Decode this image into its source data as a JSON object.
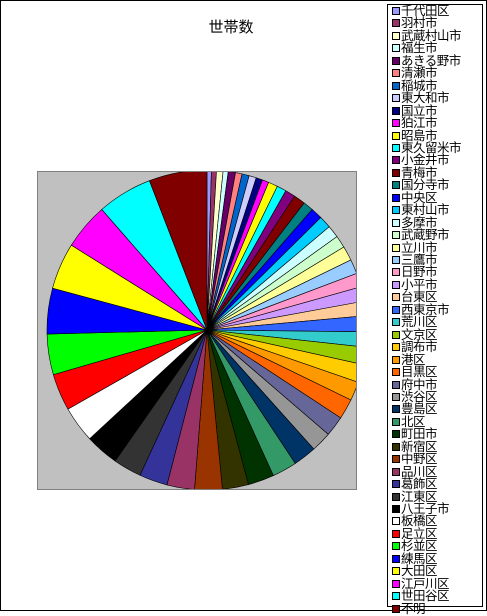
{
  "chart_data": {
    "type": "pie",
    "title": "世帯数",
    "legend_position": "right",
    "start_angle_deg": 0,
    "direction": "clockwise",
    "slices": [
      {
        "label": "千代田区",
        "value": 0.6,
        "color": "#9999ff"
      },
      {
        "label": "羽村市",
        "value": 0.7,
        "color": "#993366"
      },
      {
        "label": "武蔵村山市",
        "value": 0.9,
        "color": "#ffffcc"
      },
      {
        "label": "福生市",
        "value": 0.7,
        "color": "#ccffff"
      },
      {
        "label": "あきる野市",
        "value": 1.0,
        "color": "#660066"
      },
      {
        "label": "清瀬市",
        "value": 0.9,
        "color": "#ff8080"
      },
      {
        "label": "稲城市",
        "value": 1.0,
        "color": "#0066cc"
      },
      {
        "label": "東大和市",
        "value": 1.0,
        "color": "#ccccff"
      },
      {
        "label": "国立市",
        "value": 0.9,
        "color": "#000080"
      },
      {
        "label": "狛江市",
        "value": 0.9,
        "color": "#ff00ff"
      },
      {
        "label": "昭島市",
        "value": 1.3,
        "color": "#ffff00"
      },
      {
        "label": "東久留米市",
        "value": 1.3,
        "color": "#00ffff"
      },
      {
        "label": "小金井市",
        "value": 1.4,
        "color": "#800080"
      },
      {
        "label": "青梅市",
        "value": 1.6,
        "color": "#800000"
      },
      {
        "label": "国分寺市",
        "value": 1.4,
        "color": "#008080"
      },
      {
        "label": "中央区",
        "value": 1.6,
        "color": "#0000ff"
      },
      {
        "label": "東村山市",
        "value": 1.7,
        "color": "#00ccff"
      },
      {
        "label": "多摩市",
        "value": 1.7,
        "color": "#ccffff"
      },
      {
        "label": "武蔵野市",
        "value": 1.7,
        "color": "#ccffcc"
      },
      {
        "label": "立川市",
        "value": 2.0,
        "color": "#ffff99"
      },
      {
        "label": "三鷹市",
        "value": 2.0,
        "color": "#99ccff"
      },
      {
        "label": "日野市",
        "value": 1.9,
        "color": "#ff99cc"
      },
      {
        "label": "小平市",
        "value": 2.0,
        "color": "#cc99ff"
      },
      {
        "label": "台東区",
        "value": 2.0,
        "color": "#ffcc99"
      },
      {
        "label": "西東京市",
        "value": 2.2,
        "color": "#3366ff"
      },
      {
        "label": "荒川区",
        "value": 2.1,
        "color": "#33cccc"
      },
      {
        "label": "文京区",
        "value": 2.4,
        "color": "#99cc00"
      },
      {
        "label": "調布市",
        "value": 2.5,
        "color": "#ffcc00"
      },
      {
        "label": "港区",
        "value": 2.6,
        "color": "#ff9900"
      },
      {
        "label": "目黒区",
        "value": 2.8,
        "color": "#ff6600"
      },
      {
        "label": "府中市",
        "value": 2.8,
        "color": "#666699"
      },
      {
        "label": "渋谷区",
        "value": 2.8,
        "color": "#969696"
      },
      {
        "label": "豊島区",
        "value": 3.2,
        "color": "#003366"
      },
      {
        "label": "北区",
        "value": 3.4,
        "color": "#339966"
      },
      {
        "label": "町田市",
        "value": 3.6,
        "color": "#003300"
      },
      {
        "label": "新宿区",
        "value": 3.6,
        "color": "#333300"
      },
      {
        "label": "中野区",
        "value": 3.8,
        "color": "#993300"
      },
      {
        "label": "品川区",
        "value": 3.8,
        "color": "#993366"
      },
      {
        "label": "葛飾区",
        "value": 3.9,
        "color": "#333399"
      },
      {
        "label": "江東区",
        "value": 3.9,
        "color": "#333333"
      },
      {
        "label": "八王子市",
        "value": 4.6,
        "color": "#000000"
      },
      {
        "label": "板橋区",
        "value": 5.0,
        "color": "#ffffff"
      },
      {
        "label": "足立区",
        "value": 5.1,
        "color": "#ff0000"
      },
      {
        "label": "杉並区",
        "value": 5.6,
        "color": "#00ff00"
      },
      {
        "label": "練馬区",
        "value": 6.3,
        "color": "#0000ff"
      },
      {
        "label": "大田区",
        "value": 6.4,
        "color": "#ffff00"
      },
      {
        "label": "江戸川区",
        "value": 6.4,
        "color": "#ff00ff"
      },
      {
        "label": "世田谷区",
        "value": 7.6,
        "color": "#00ffff"
      },
      {
        "label": "不明",
        "value": 8.0,
        "color": "#800000"
      }
    ]
  }
}
